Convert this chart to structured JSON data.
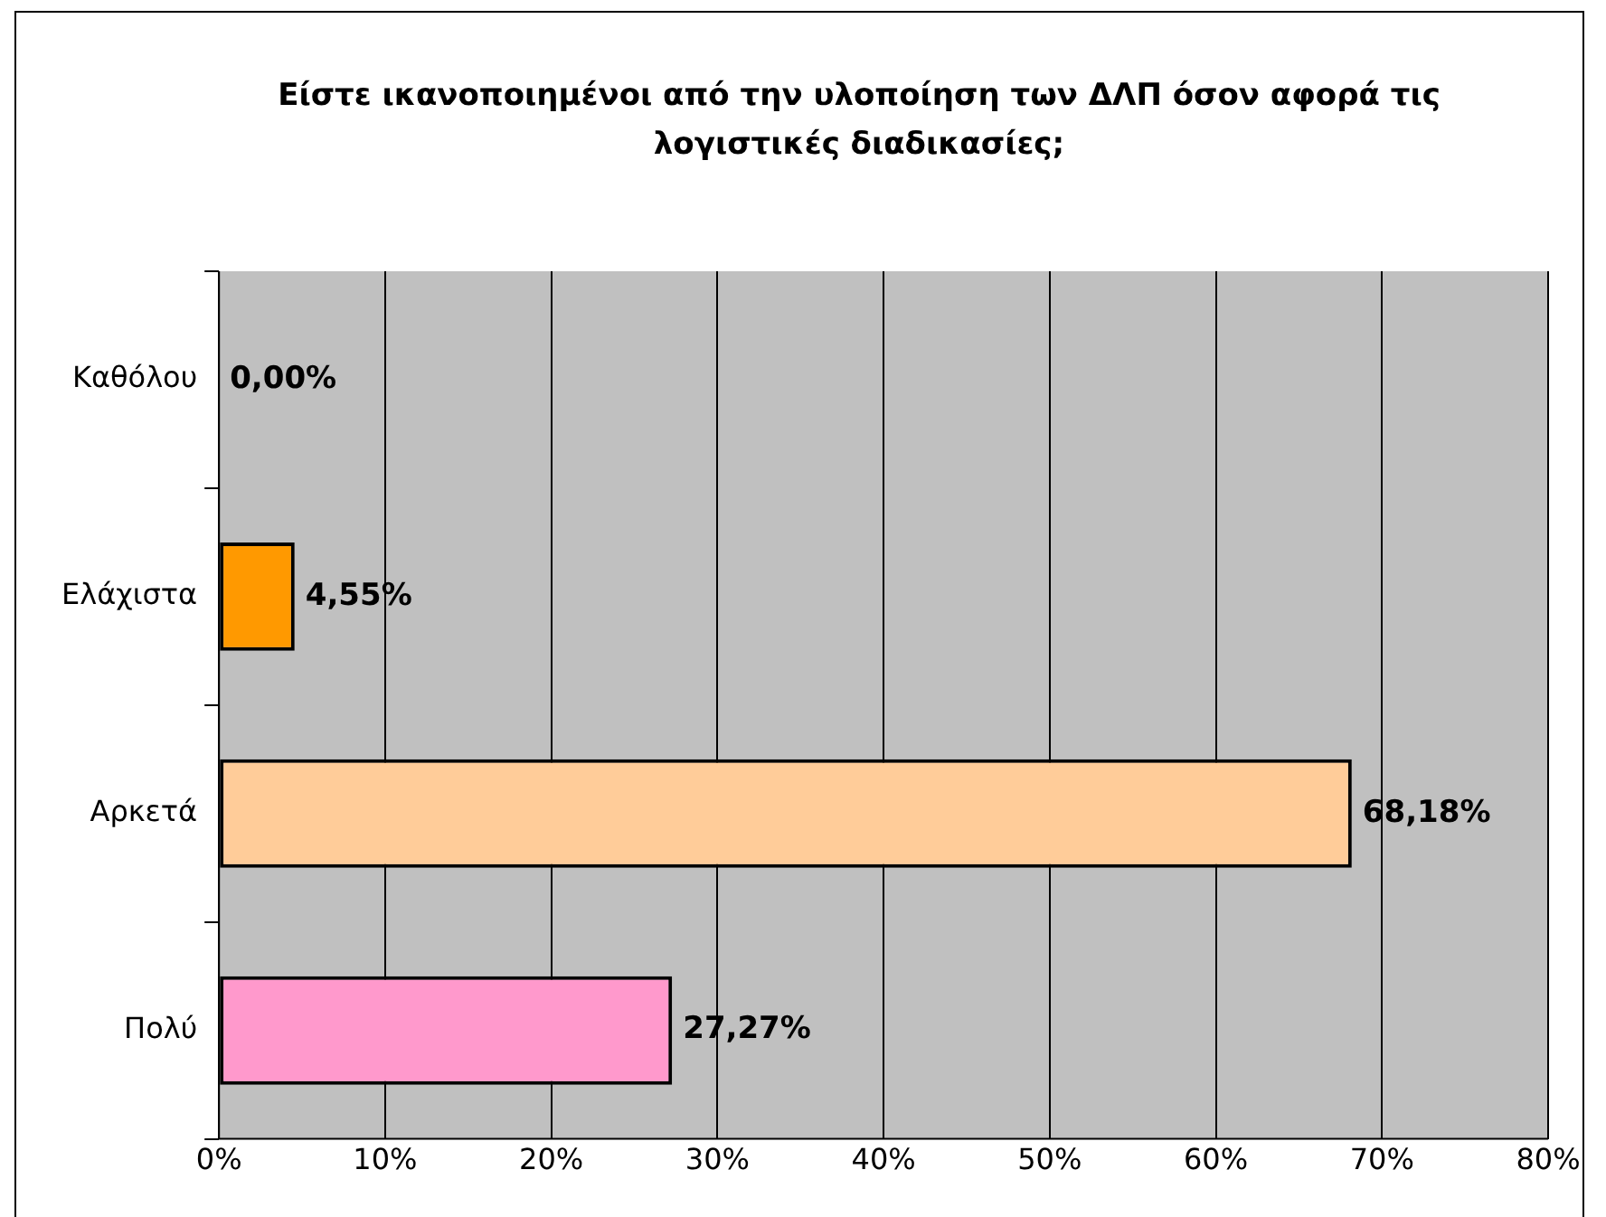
{
  "chart_data": {
    "type": "bar",
    "orientation": "horizontal",
    "title": "Είστε ικανοποιημένοι από την υλοποίηση των ΔΛΠ όσον αφορά τις λογιστικές διαδικασίες;",
    "categories": [
      "Καθόλου",
      "Ελάχιστα",
      "Αρκετά",
      "Πολύ"
    ],
    "values": [
      0,
      4.55,
      68.18,
      27.27
    ],
    "colors": [
      "#ffcc00",
      "#ff9900",
      "#ffcc99",
      "#ff99cc"
    ],
    "value_labels": [
      "0,00%",
      "4,55%",
      "68,18%",
      "27,27%"
    ],
    "xlim": [
      0,
      80
    ],
    "xticks": [
      {
        "value": 0,
        "label": "0%"
      },
      {
        "value": 10,
        "label": "10%"
      },
      {
        "value": 20,
        "label": "20%"
      },
      {
        "value": 30,
        "label": "30%"
      },
      {
        "value": 40,
        "label": "40%"
      },
      {
        "value": 50,
        "label": "50%"
      },
      {
        "value": 60,
        "label": "60%"
      },
      {
        "value": 70,
        "label": "70%"
      },
      {
        "value": 80,
        "label": "80%"
      }
    ],
    "grid": "x",
    "legend": false
  }
}
